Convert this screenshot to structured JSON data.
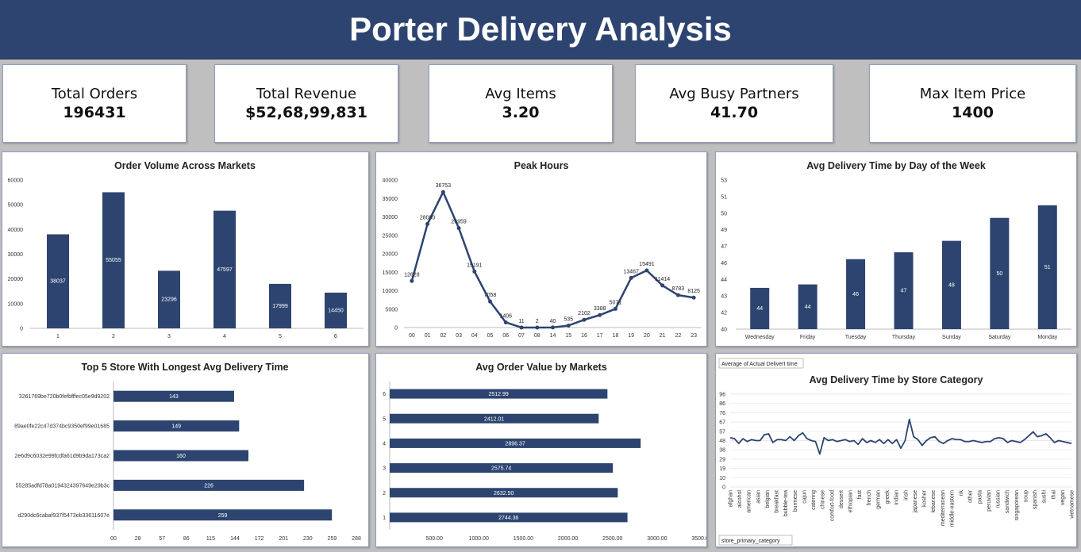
{
  "title": "Porter Delivery Analysis",
  "kpis": [
    {
      "label": "Total Orders",
      "value": "196431"
    },
    {
      "label": "Total Revenue",
      "value": "$52,68,99,831"
    },
    {
      "label": "Avg Items",
      "value": "3.20"
    },
    {
      "label": "Avg Busy Partners",
      "value": "41.70"
    },
    {
      "label": "Max Item Price",
      "value": "1400"
    }
  ],
  "colors": {
    "bar": "#2d4470",
    "banner": "#2d4470",
    "background": "#bfbfbf"
  },
  "chart_data": [
    {
      "type": "bar",
      "title": "Order Volume Across Markets",
      "categories": [
        "1",
        "2",
        "3",
        "4",
        "5",
        "6"
      ],
      "values": [
        38037,
        55055,
        23296,
        47597,
        17999,
        14450
      ],
      "labels": [
        "38037",
        "55055",
        "23296",
        "47597",
        "17999",
        "14450"
      ],
      "yticks": [
        "0",
        "10000",
        "20000",
        "30000",
        "40000",
        "50000",
        "60000"
      ],
      "ylim": [
        0,
        60000
      ]
    },
    {
      "type": "line",
      "title": "Peak Hours",
      "categories": [
        "00",
        "01",
        "02",
        "03",
        "04",
        "05",
        "06",
        "07",
        "08",
        "14",
        "15",
        "16",
        "17",
        "18",
        "19",
        "20",
        "21",
        "22",
        "23"
      ],
      "values": [
        12628,
        28080,
        36753,
        26959,
        15191,
        7058,
        1406,
        11,
        2,
        40,
        535,
        2102,
        3388,
        5071,
        13467,
        15491,
        11414,
        8783,
        8125
      ],
      "labels": [
        "12628",
        "28080",
        "36753",
        "26959",
        "15191",
        "7058",
        "1406",
        "11",
        "2",
        "40",
        "535",
        "2102",
        "3388",
        "5071",
        "13467",
        "15491",
        "11414",
        "8783",
        "8125"
      ],
      "yticks": [
        "0",
        "5000",
        "10000",
        "15000",
        "20000",
        "25000",
        "30000",
        "35000",
        "40000"
      ],
      "ylim": [
        0,
        40000
      ]
    },
    {
      "type": "bar",
      "title": "Avg Delivery Time by Day of the Week",
      "categories": [
        "Wednesday",
        "Friday",
        "Tuesday",
        "Thursday",
        "Sunday",
        "Saturday",
        "Monday"
      ],
      "values": [
        43.6,
        43.9,
        46.1,
        46.7,
        47.7,
        49.7,
        50.8
      ],
      "labels": [
        "44",
        "44",
        "46",
        "47",
        "48",
        "50",
        "51"
      ],
      "yticks": [
        "40",
        "42",
        "43",
        "44",
        "46",
        "47",
        "49",
        "50",
        "51",
        "53"
      ],
      "ylim": [
        40,
        53
      ]
    },
    {
      "type": "bar",
      "orientation": "horizontal",
      "title": "Top 5 Store With Longest Avg Delivery Time",
      "categories": [
        "3261769be720b0fefbfffec05e9d9202",
        "89ae0fe22c47d374bc9350ef99e01685",
        "2e6d9c6032e99fcdfa61d9b9da173ca2",
        "55285adfd78a0194324397649e29b3c",
        "d290dc6cabaf937f5473eb33611607e"
      ],
      "values": [
        143,
        149,
        160,
        226,
        259
      ],
      "labels": [
        "143",
        "149",
        "160",
        "226",
        "259"
      ],
      "xticks": [
        "00",
        "28",
        "57",
        "86",
        "115",
        "144",
        "172",
        "201",
        "230",
        "259",
        "288"
      ],
      "xlim": [
        0,
        288
      ]
    },
    {
      "type": "bar",
      "orientation": "horizontal",
      "title": "Avg Order Value by Markets",
      "categories": [
        "6",
        "5",
        "4",
        "3",
        "2",
        "1"
      ],
      "values": [
        2512.99,
        2412.01,
        2896.37,
        2575.74,
        2632.5,
        2744.36
      ],
      "labels": [
        "2512.99",
        "2412.01",
        "2896.37",
        "2575.74",
        "2632.50",
        "2744.36"
      ],
      "xticks": [
        "",
        "500.00",
        "1000.00",
        "1500.00",
        "2000.00",
        "2500.00",
        "3000.00",
        "3500.00"
      ],
      "xlim": [
        0,
        3600
      ]
    },
    {
      "type": "line",
      "title": "Avg Delivery Time by Store Category",
      "field_button": "Average of Actual Delivert time",
      "axis_button": "store_primary_category",
      "yticks": [
        "0",
        "10",
        "19",
        "29",
        "38",
        "48",
        "57",
        "67",
        "76",
        "86",
        "96"
      ],
      "ylim": [
        0,
        96
      ],
      "xtick_labels": [
        "afghan",
        "alcohol",
        "american",
        "asian",
        "belgian",
        "breakfast",
        "bubble-tea",
        "burmese",
        "cajun",
        "catering",
        "chinese",
        "comfort-food",
        "dessert",
        "ethiopian",
        "fast",
        "french",
        "german",
        "greek",
        "indian",
        "irish",
        "japanese",
        "kosher",
        "lebanese",
        "mediterranean",
        "middle-eastern",
        "nk",
        "other",
        "pasta",
        "peruvian",
        "russian",
        "sandwich",
        "singaporean",
        "soup",
        "spanish",
        "sushi",
        "thai",
        "vegan",
        "vietnamese"
      ],
      "values": [
        51,
        50,
        45,
        50,
        47,
        49,
        48,
        48,
        54,
        55,
        46,
        49,
        49,
        48,
        52,
        48,
        53,
        56,
        50,
        48,
        47,
        34,
        51,
        48,
        49,
        47,
        48,
        49,
        47,
        48,
        44,
        50,
        46,
        48,
        46,
        49,
        45,
        49,
        45,
        49,
        40,
        48,
        70,
        52,
        49,
        43,
        48,
        51,
        52,
        47,
        45,
        48,
        50,
        49,
        49,
        47,
        47,
        48,
        47,
        46,
        47,
        47,
        50,
        51,
        50,
        46,
        48,
        47,
        46,
        49,
        53,
        57,
        52,
        53,
        55,
        51,
        46,
        48,
        47,
        46,
        45
      ]
    }
  ]
}
